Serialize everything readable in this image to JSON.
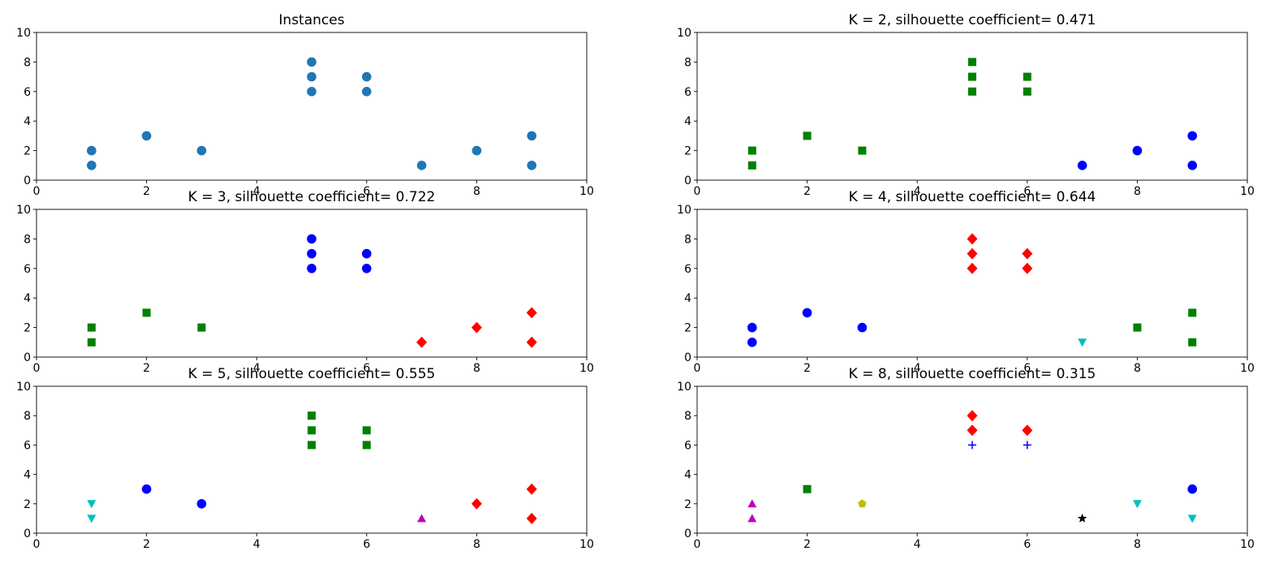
{
  "chart_data": [
    {
      "type": "scatter",
      "title": "Instances",
      "xlim": [
        0,
        10
      ],
      "ylim": [
        0,
        10
      ],
      "xticks": [
        0,
        2,
        4,
        6,
        8,
        10
      ],
      "yticks": [
        0,
        2,
        4,
        6,
        8,
        10
      ],
      "grid": false,
      "series": [
        {
          "marker": "circle",
          "color": "#1f77b4",
          "points": [
            [
              1,
              2
            ],
            [
              1,
              1
            ],
            [
              2,
              3
            ],
            [
              3,
              2
            ],
            [
              5,
              8
            ],
            [
              5,
              7
            ],
            [
              5,
              6
            ],
            [
              6,
              7
            ],
            [
              6,
              6
            ],
            [
              7,
              1
            ],
            [
              8,
              2
            ],
            [
              9,
              3
            ],
            [
              9,
              1
            ]
          ]
        }
      ]
    },
    {
      "type": "scatter",
      "title": "K = 2, silhouette coefficient= 0.471",
      "xlim": [
        0,
        10
      ],
      "ylim": [
        0,
        10
      ],
      "xticks": [
        0,
        2,
        4,
        6,
        8,
        10
      ],
      "yticks": [
        0,
        2,
        4,
        6,
        8,
        10
      ],
      "grid": false,
      "series": [
        {
          "marker": "square",
          "color": "#008000",
          "points": [
            [
              1,
              2
            ],
            [
              1,
              1
            ],
            [
              2,
              3
            ],
            [
              3,
              2
            ],
            [
              5,
              8
            ],
            [
              5,
              7
            ],
            [
              5,
              6
            ],
            [
              6,
              7
            ],
            [
              6,
              6
            ]
          ]
        },
        {
          "marker": "circle",
          "color": "#0000ff",
          "points": [
            [
              7,
              1
            ],
            [
              8,
              2
            ],
            [
              9,
              3
            ],
            [
              9,
              1
            ]
          ]
        }
      ]
    },
    {
      "type": "scatter",
      "title": "K = 3, silhouette coefficient= 0.722",
      "xlim": [
        0,
        10
      ],
      "ylim": [
        0,
        10
      ],
      "xticks": [
        0,
        2,
        4,
        6,
        8,
        10
      ],
      "yticks": [
        0,
        2,
        4,
        6,
        8,
        10
      ],
      "grid": false,
      "series": [
        {
          "marker": "square",
          "color": "#008000",
          "points": [
            [
              1,
              2
            ],
            [
              1,
              1
            ],
            [
              2,
              3
            ],
            [
              3,
              2
            ]
          ]
        },
        {
          "marker": "circle",
          "color": "#0000ff",
          "points": [
            [
              5,
              8
            ],
            [
              5,
              7
            ],
            [
              5,
              6
            ],
            [
              6,
              7
            ],
            [
              6,
              6
            ]
          ]
        },
        {
          "marker": "diamond",
          "color": "#ff0000",
          "points": [
            [
              7,
              1
            ],
            [
              8,
              2
            ],
            [
              9,
              3
            ],
            [
              9,
              1
            ]
          ]
        }
      ]
    },
    {
      "type": "scatter",
      "title": "K = 4, silhouette coefficient= 0.644",
      "xlim": [
        0,
        10
      ],
      "ylim": [
        0,
        10
      ],
      "xticks": [
        0,
        2,
        4,
        6,
        8,
        10
      ],
      "yticks": [
        0,
        2,
        4,
        6,
        8,
        10
      ],
      "grid": false,
      "series": [
        {
          "marker": "circle",
          "color": "#0000ff",
          "points": [
            [
              1,
              2
            ],
            [
              1,
              1
            ],
            [
              2,
              3
            ],
            [
              3,
              2
            ]
          ]
        },
        {
          "marker": "diamond",
          "color": "#ff0000",
          "points": [
            [
              5,
              8
            ],
            [
              5,
              7
            ],
            [
              5,
              6
            ],
            [
              6,
              7
            ],
            [
              6,
              6
            ]
          ]
        },
        {
          "marker": "triangle-down",
          "color": "#00bfbf",
          "points": [
            [
              7,
              1
            ]
          ]
        },
        {
          "marker": "square",
          "color": "#008000",
          "points": [
            [
              8,
              2
            ],
            [
              9,
              3
            ],
            [
              9,
              1
            ]
          ]
        }
      ]
    },
    {
      "type": "scatter",
      "title": "K = 5, silhouette coefficient= 0.555",
      "xlim": [
        0,
        10
      ],
      "ylim": [
        0,
        10
      ],
      "xticks": [
        0,
        2,
        4,
        6,
        8,
        10
      ],
      "yticks": [
        0,
        2,
        4,
        6,
        8,
        10
      ],
      "grid": false,
      "series": [
        {
          "marker": "triangle-down",
          "color": "#00bfbf",
          "points": [
            [
              1,
              2
            ],
            [
              1,
              1
            ]
          ]
        },
        {
          "marker": "circle",
          "color": "#0000ff",
          "points": [
            [
              2,
              3
            ],
            [
              3,
              2
            ]
          ]
        },
        {
          "marker": "square",
          "color": "#008000",
          "points": [
            [
              5,
              8
            ],
            [
              5,
              7
            ],
            [
              5,
              6
            ],
            [
              6,
              7
            ],
            [
              6,
              6
            ]
          ]
        },
        {
          "marker": "triangle-up",
          "color": "#bf00bf",
          "points": [
            [
              7,
              1
            ]
          ]
        },
        {
          "marker": "diamond",
          "color": "#ff0000",
          "points": [
            [
              8,
              2
            ],
            [
              9,
              3
            ],
            [
              9,
              1
            ]
          ]
        }
      ]
    },
    {
      "type": "scatter",
      "title": "K = 8, silhouette coefficient= 0.315",
      "xlim": [
        0,
        10
      ],
      "ylim": [
        0,
        10
      ],
      "xticks": [
        0,
        2,
        4,
        6,
        8,
        10
      ],
      "yticks": [
        0,
        2,
        4,
        6,
        8,
        10
      ],
      "grid": false,
      "series": [
        {
          "marker": "triangle-up",
          "color": "#bf00bf",
          "points": [
            [
              1,
              2
            ],
            [
              1,
              1
            ]
          ]
        },
        {
          "marker": "square",
          "color": "#008000",
          "points": [
            [
              2,
              3
            ]
          ]
        },
        {
          "marker": "pentagon",
          "color": "#bfbf00",
          "points": [
            [
              3,
              2
            ]
          ]
        },
        {
          "marker": "diamond",
          "color": "#ff0000",
          "points": [
            [
              5,
              8
            ],
            [
              5,
              7
            ],
            [
              6,
              7
            ]
          ]
        },
        {
          "marker": "plus",
          "color": "#0000ff",
          "points": [
            [
              5,
              6
            ],
            [
              6,
              6
            ]
          ]
        },
        {
          "marker": "star",
          "color": "#000000",
          "points": [
            [
              7,
              1
            ]
          ]
        },
        {
          "marker": "triangle-down",
          "color": "#00bfbf",
          "points": [
            [
              8,
              2
            ],
            [
              9,
              1
            ]
          ]
        },
        {
          "marker": "circle",
          "color": "#0000ff",
          "points": [
            [
              9,
              3
            ]
          ]
        }
      ]
    }
  ]
}
